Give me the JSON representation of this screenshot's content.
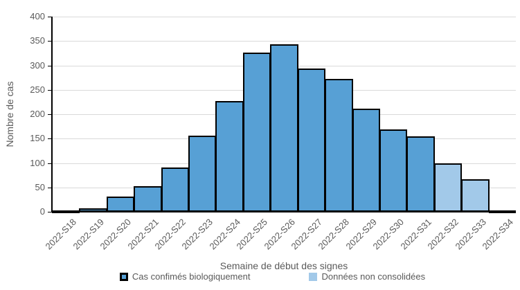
{
  "colors": {
    "confirmed_fill": "#57A0D5",
    "unconsolidated_fill": "#A2C9E9",
    "bar_border": "#000000",
    "axis_line": "#000000",
    "gridline": "#D9D9D9",
    "text": "#595959"
  },
  "chart_data": {
    "type": "bar",
    "title": "",
    "xlabel": "Semaine de début des signes",
    "ylabel": "Nombre de cas",
    "ylim": [
      0,
      400
    ],
    "yticks": [
      0,
      50,
      100,
      150,
      200,
      250,
      300,
      350,
      400
    ],
    "grid": true,
    "legend_position": "bottom",
    "categories": [
      "2022-S18",
      "2022-S19",
      "2022-S20",
      "2022-S21",
      "2022-S22",
      "2022-S23",
      "2022-S24",
      "2022-S25",
      "2022-S26",
      "2022-S27",
      "2022-S28",
      "2022-S29",
      "2022-S30",
      "2022-S31",
      "2022-S32",
      "2022-S33",
      "2022-S34"
    ],
    "series": [
      {
        "name": "Cas confimés biologiquement",
        "color": "#57A0D5",
        "values": [
          3,
          7,
          31,
          52,
          91,
          156,
          227,
          326,
          343,
          293,
          272,
          211,
          169,
          154,
          null,
          null,
          null
        ]
      },
      {
        "name": "Données non consolidées",
        "color": "#A2C9E9",
        "values": [
          null,
          null,
          null,
          null,
          null,
          null,
          null,
          null,
          null,
          null,
          null,
          null,
          null,
          null,
          100,
          66,
          3
        ]
      }
    ]
  }
}
